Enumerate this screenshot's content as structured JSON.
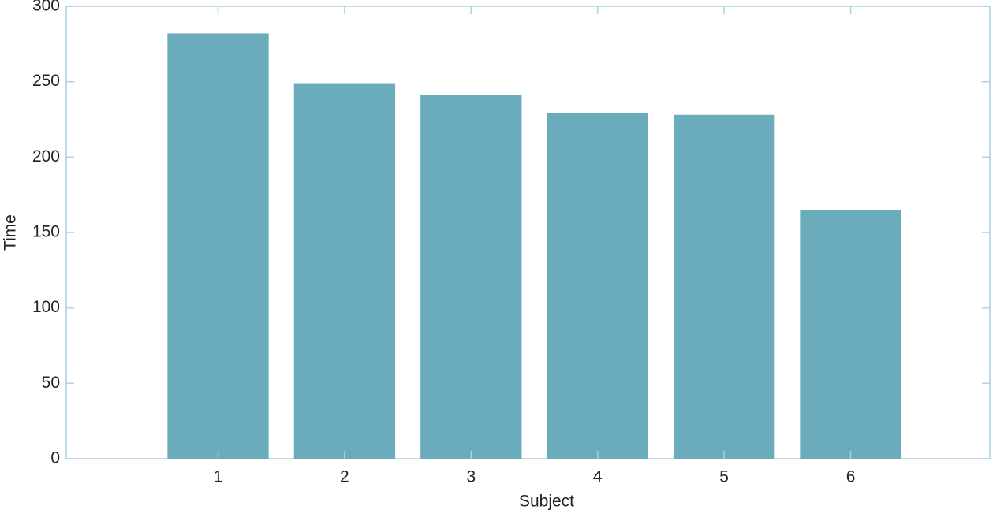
{
  "chart_data": {
    "type": "bar",
    "xlabel": "Subject",
    "ylabel": "Time",
    "x": [
      1,
      2,
      3,
      4,
      5,
      6
    ],
    "values": [
      282,
      249,
      241,
      229,
      228,
      165
    ],
    "color": "#6aabbc",
    "bar_width": 0.8,
    "xlim": [
      -0.2,
      7.1
    ],
    "xticks": [
      1,
      2,
      3,
      4,
      5,
      6
    ],
    "ylim": [
      0,
      300
    ],
    "yticks": [
      0,
      50,
      100,
      150,
      200,
      250,
      300
    ]
  }
}
